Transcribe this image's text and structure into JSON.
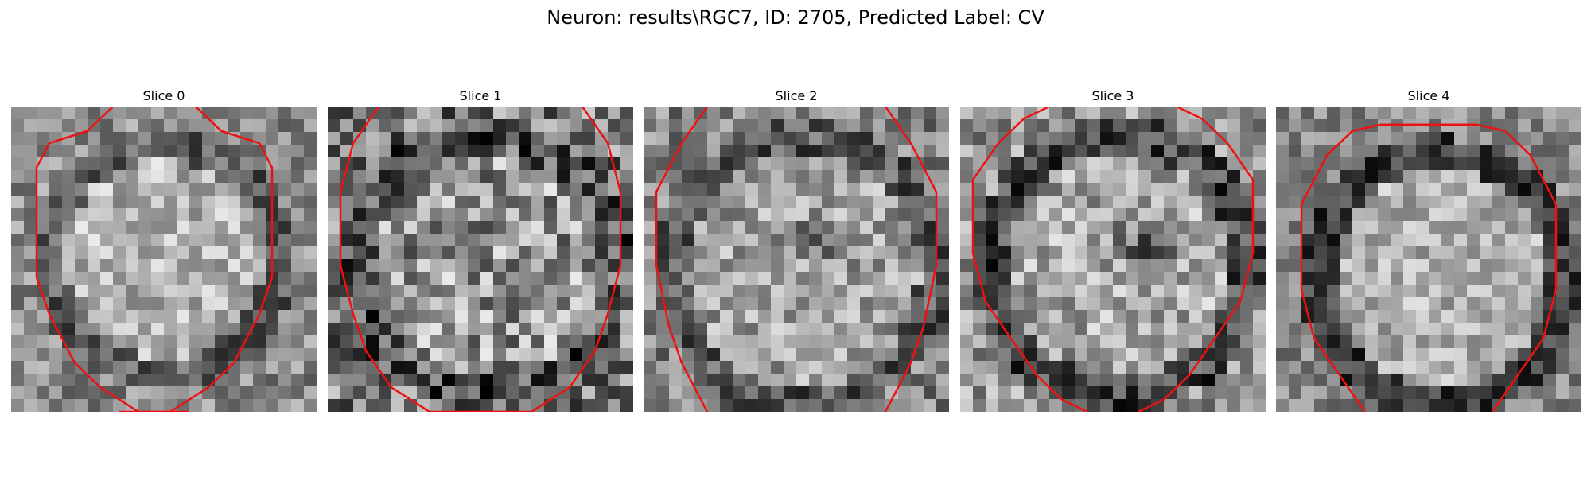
{
  "figure": {
    "title": "Neuron: results\\RGC7, ID: 2705, Predicted Label: CV"
  },
  "panels": [
    {
      "title": "Slice 0"
    },
    {
      "title": "Slice 1"
    },
    {
      "title": "Slice 2"
    },
    {
      "title": "Slice 3"
    },
    {
      "title": "Slice 4"
    }
  ],
  "colors": {
    "contour": "#ee1111",
    "background": "#ffffff"
  }
}
